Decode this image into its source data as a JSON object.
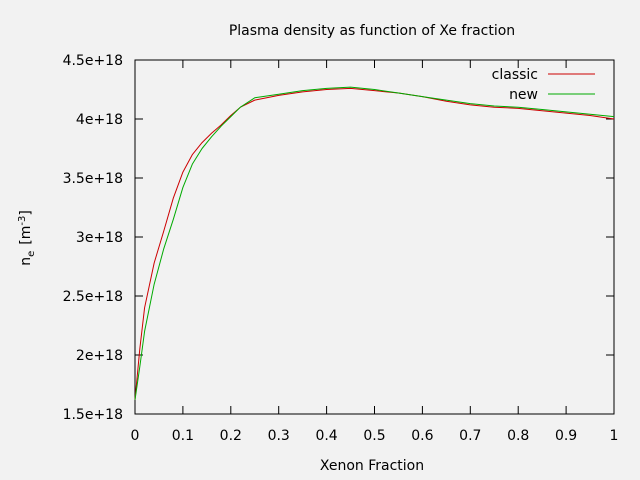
{
  "chart_data": {
    "type": "line",
    "title": "Plasma density as function of Xe fraction",
    "xlabel": "Xenon Fraction",
    "ylabel_base": "n",
    "ylabel_sub": "e",
    "ylabel_unit": "[m",
    "ylabel_exp": "-3",
    "ylabel_close": "]",
    "xlim": [
      0,
      1
    ],
    "ylim": [
      1.5e+18,
      4.5e+18
    ],
    "x_ticks": [
      0,
      0.1,
      0.2,
      0.3,
      0.4,
      0.5,
      0.6,
      0.7,
      0.8,
      0.9,
      1
    ],
    "x_tick_labels": [
      "0",
      "0.1",
      "0.2",
      "0.3",
      "0.4",
      "0.5",
      "0.6",
      "0.7",
      "0.8",
      "0.9",
      "1"
    ],
    "y_ticks": [
      1.5e+18,
      2e+18,
      2.5e+18,
      3e+18,
      3.5e+18,
      4e+18,
      4.5e+18
    ],
    "y_tick_labels": [
      "1.5e+18",
      "2e+18",
      "2.5e+18",
      "3e+18",
      "3.5e+18",
      "4e+18",
      "4.5e+18"
    ],
    "legend_position": "top-right",
    "grid": false,
    "series": [
      {
        "name": "classic",
        "color": "#cc0000",
        "x": [
          0,
          0.01,
          0.02,
          0.04,
          0.06,
          0.08,
          0.1,
          0.12,
          0.14,
          0.16,
          0.18,
          0.2,
          0.22,
          0.25,
          0.3,
          0.35,
          0.4,
          0.45,
          0.5,
          0.55,
          0.6,
          0.65,
          0.7,
          0.75,
          0.8,
          0.85,
          0.9,
          0.95,
          1
        ],
        "y": [
          1.62e+18,
          2.05e+18,
          2.4e+18,
          2.78e+18,
          3.05e+18,
          3.33e+18,
          3.55e+18,
          3.7e+18,
          3.8e+18,
          3.88e+18,
          3.95e+18,
          4.03e+18,
          4.1e+18,
          4.16e+18,
          4.2e+18,
          4.23e+18,
          4.25e+18,
          4.26e+18,
          4.24e+18,
          4.22e+18,
          4.19e+18,
          4.15e+18,
          4.12e+18,
          4.1e+18,
          4.09e+18,
          4.07e+18,
          4.05e+18,
          4.03e+18,
          4e+18
        ]
      },
      {
        "name": "new",
        "color": "#00aa00",
        "x": [
          0,
          0.01,
          0.02,
          0.04,
          0.06,
          0.08,
          0.1,
          0.12,
          0.14,
          0.16,
          0.18,
          0.2,
          0.22,
          0.25,
          0.3,
          0.35,
          0.4,
          0.45,
          0.5,
          0.55,
          0.6,
          0.65,
          0.7,
          0.75,
          0.8,
          0.85,
          0.9,
          0.95,
          1
        ],
        "y": [
          1.62e+18,
          1.9e+18,
          2.2e+18,
          2.6e+18,
          2.9e+18,
          3.15e+18,
          3.42e+18,
          3.62e+18,
          3.75e+18,
          3.85e+18,
          3.94e+18,
          4.02e+18,
          4.1e+18,
          4.18e+18,
          4.21e+18,
          4.24e+18,
          4.26e+18,
          4.27e+18,
          4.25e+18,
          4.22e+18,
          4.19e+18,
          4.16e+18,
          4.13e+18,
          4.11e+18,
          4.1e+18,
          4.08e+18,
          4.06e+18,
          4.04e+18,
          4.02e+18
        ]
      }
    ]
  }
}
